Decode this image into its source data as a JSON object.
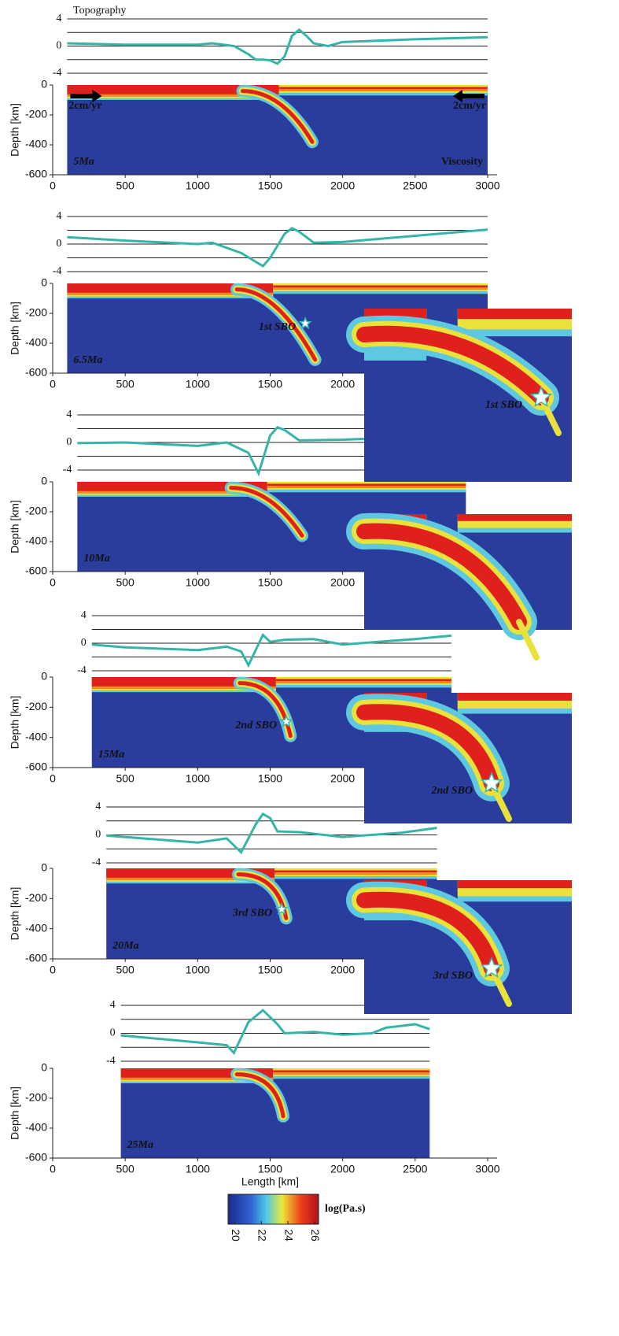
{
  "chart_data": [
    {
      "type": "line",
      "title": "Topography",
      "color": "#35b5a8",
      "x": [
        100,
        500,
        1000,
        1100,
        1250,
        1350,
        1400,
        1450,
        1500,
        1550,
        1600,
        1650,
        1700,
        1750,
        1800,
        1900,
        2000,
        2500,
        3000
      ],
      "values": [
        0.4,
        0.2,
        0.2,
        0.4,
        0,
        -1.2,
        -2,
        -2,
        -2.1,
        -2.6,
        -1.5,
        1.5,
        2.4,
        1.5,
        0.4,
        0,
        0.6,
        1,
        1.3
      ],
      "ylim": [
        -4,
        4
      ],
      "yticks": [
        4,
        0,
        -4
      ],
      "hlines": [
        4,
        2,
        0,
        -2,
        -4
      ]
    },
    {
      "type": "field",
      "label": "5Ma",
      "annotation": "Viscosity",
      "velocity_labels": [
        "2cm/yr",
        "2cm/yr"
      ],
      "ylabel": "Depth [km]",
      "ylim": [
        -600,
        0
      ],
      "yticks": [
        0,
        -200,
        -400,
        -600
      ],
      "xlim": [
        0,
        3000
      ],
      "xticks": [
        0,
        500,
        1000,
        1500,
        2000,
        2500,
        3000
      ]
    },
    {
      "type": "line",
      "color": "#35b5a8",
      "x": [
        100,
        500,
        1000,
        1100,
        1300,
        1450,
        1500,
        1600,
        1650,
        1700,
        1800,
        2000,
        2500,
        3000
      ],
      "values": [
        1.0,
        0.5,
        0,
        0.2,
        -1.3,
        -3.2,
        -2,
        1.5,
        2.3,
        1.8,
        0.2,
        0.3,
        1.2,
        2.1
      ],
      "ylim": [
        -4,
        4
      ],
      "yticks": [
        4,
        0,
        -4
      ],
      "hlines": [
        4,
        2,
        0,
        -2,
        -4
      ]
    },
    {
      "type": "field",
      "label": "6.5Ma",
      "sbo_label": "1st SBO",
      "ylabel": "Depth [km]",
      "ylim": [
        -600,
        0
      ],
      "yticks": [
        0,
        -200,
        -400,
        -600
      ],
      "xlim": [
        0,
        3000
      ],
      "xticks": [
        0,
        500,
        1000,
        1500,
        2000
      ]
    },
    {
      "type": "line",
      "color": "#35b5a8",
      "x": [
        170,
        500,
        1000,
        1200,
        1350,
        1420,
        1500,
        1550,
        1600,
        1700,
        2000,
        2500,
        2850
      ],
      "values": [
        -0.1,
        0,
        -0.5,
        0,
        -1.5,
        -4.5,
        1,
        2.2,
        1.8,
        0.3,
        0.4,
        0.8,
        1.0
      ],
      "ylim": [
        -4,
        4
      ],
      "yticks": [
        4,
        0,
        -4
      ],
      "hlines": [
        4,
        2,
        0,
        -2,
        -4
      ]
    },
    {
      "type": "field",
      "label": "10Ma",
      "ylabel": "Depth [km]",
      "ylim": [
        -600,
        0
      ],
      "yticks": [
        0,
        -200,
        -400,
        -600
      ],
      "xlim": [
        0,
        3000
      ],
      "xticks": [
        0,
        500,
        1000,
        1500,
        2000
      ]
    },
    {
      "type": "line",
      "color": "#35b5a8",
      "x": [
        270,
        500,
        1000,
        1200,
        1300,
        1350,
        1400,
        1450,
        1500,
        1600,
        1800,
        2000,
        2500,
        2750
      ],
      "values": [
        -0.2,
        -0.6,
        -1,
        -0.5,
        -1.2,
        -3.2,
        -1,
        1.2,
        0.2,
        0.5,
        0.6,
        -0.2,
        0.6,
        1.1
      ],
      "ylim": [
        -4,
        4
      ],
      "yticks": [
        4,
        0,
        -4
      ],
      "hlines": [
        4,
        2,
        0,
        -2,
        -4
      ]
    },
    {
      "type": "field",
      "label": "15Ma",
      "sbo_label": "2nd SBO",
      "ylabel": "Depth [km]",
      "ylim": [
        -600,
        0
      ],
      "yticks": [
        0,
        -200,
        -400,
        -600
      ],
      "xlim": [
        0,
        3000
      ],
      "xticks": [
        0,
        500,
        1000,
        1500,
        2000
      ]
    },
    {
      "type": "line",
      "color": "#35b5a8",
      "x": [
        370,
        1000,
        1200,
        1300,
        1400,
        1450,
        1500,
        1550,
        1700,
        2000,
        2400,
        2650
      ],
      "values": [
        -0.1,
        -1.1,
        -0.5,
        -2.5,
        1.5,
        3,
        2.4,
        0.5,
        0.4,
        -0.3,
        0.3,
        1.0
      ],
      "ylim": [
        -4,
        4
      ],
      "yticks": [
        4,
        0,
        -4
      ],
      "hlines": [
        4,
        2,
        0,
        -2,
        -4
      ]
    },
    {
      "type": "field",
      "label": "20Ma",
      "sbo_label": "3rd SBO",
      "ylabel": "Depth [km]",
      "ylim": [
        -600,
        0
      ],
      "yticks": [
        0,
        -200,
        -400,
        -600
      ],
      "xlim": [
        0,
        3000
      ],
      "xticks": [
        0,
        500,
        1000,
        1500,
        2000
      ]
    },
    {
      "type": "line",
      "color": "#35b5a8",
      "x": [
        470,
        1000,
        1200,
        1250,
        1350,
        1450,
        1550,
        1600,
        1800,
        2000,
        2200,
        2300,
        2500,
        2600
      ],
      "values": [
        -0.3,
        -1.3,
        -1.7,
        -2.8,
        1.6,
        3.3,
        1.3,
        0,
        0.2,
        -0.2,
        0,
        0.8,
        1.3,
        0.6
      ],
      "ylim": [
        -4,
        4
      ],
      "yticks": [
        4,
        0,
        -4
      ],
      "hlines": [
        4,
        2,
        0,
        -2,
        -4
      ]
    },
    {
      "type": "field",
      "label": "25Ma",
      "ylabel": "Depth [km]",
      "xlabel": "Length [km]",
      "ylim": [
        -600,
        0
      ],
      "yticks": [
        0,
        -200,
        -400,
        -600
      ],
      "xlim": [
        0,
        3000
      ],
      "xticks": [
        0,
        500,
        1000,
        1500,
        2000,
        2500,
        3000
      ]
    },
    {
      "type": "colorbar",
      "label": "log(Pa.s)",
      "clim": [
        19.5,
        26.3
      ],
      "ticks": [
        20,
        22,
        24,
        26
      ]
    }
  ],
  "insets": {
    "labels": [
      "1st SBO",
      "2nd SBO",
      "3rd SBO"
    ]
  }
}
